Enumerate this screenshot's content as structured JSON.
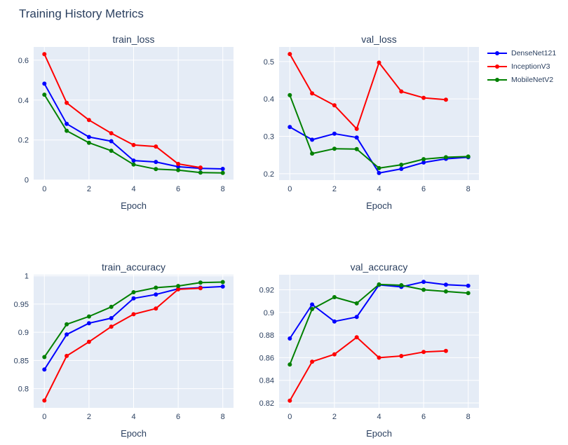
{
  "page_title": "Training History Metrics",
  "colors": {
    "text": "#2a3f5f",
    "plot_bg": "#e5ecf6",
    "grid": "#ffffff",
    "paper": "#ffffff"
  },
  "legend": {
    "position": "outside-top-right",
    "items": [
      {
        "label": "DenseNet121",
        "color": "#0000ff"
      },
      {
        "label": "InceptionV3",
        "color": "#ff0000"
      },
      {
        "label": "MobileNetV2",
        "color": "#008000"
      }
    ]
  },
  "chart_data": [
    {
      "type": "line",
      "title": "train_loss",
      "xlabel": "Epoch",
      "x": [
        0,
        1,
        2,
        3,
        4,
        5,
        6,
        7,
        8
      ],
      "xlim": [
        -0.48,
        8.48
      ],
      "ylim": [
        -0.001,
        0.666
      ],
      "xticks": [
        0,
        2,
        4,
        6,
        8
      ],
      "xtick_labels": [
        "0",
        "2",
        "4",
        "6",
        "8"
      ],
      "yticks": [
        0,
        0.2,
        0.4,
        0.6
      ],
      "ytick_labels": [
        "0",
        "0.2",
        "0.4",
        "0.6"
      ],
      "grid": true,
      "series": [
        {
          "name": "DenseNet121",
          "color": "#0000ff",
          "values": [
            0.482,
            0.281,
            0.215,
            0.194,
            0.097,
            0.09,
            0.066,
            0.058,
            0.055
          ]
        },
        {
          "name": "InceptionV3",
          "color": "#ff0000",
          "values": [
            0.63,
            0.386,
            0.3,
            0.234,
            0.175,
            0.167,
            0.08,
            0.062
          ]
        },
        {
          "name": "MobileNetV2",
          "color": "#008000",
          "values": [
            0.427,
            0.246,
            0.186,
            0.146,
            0.077,
            0.054,
            0.049,
            0.037,
            0.035
          ]
        }
      ]
    },
    {
      "type": "line",
      "title": "val_loss",
      "xlabel": "Epoch",
      "x": [
        0,
        1,
        2,
        3,
        4,
        5,
        6,
        7,
        8
      ],
      "xlim": [
        -0.48,
        8.48
      ],
      "ylim": [
        0.183,
        0.539
      ],
      "xticks": [
        0,
        2,
        4,
        6,
        8
      ],
      "xtick_labels": [
        "0",
        "2",
        "4",
        "6",
        "8"
      ],
      "yticks": [
        0.2,
        0.3,
        0.4,
        0.5
      ],
      "ytick_labels": [
        "0.2",
        "0.3",
        "0.4",
        "0.5"
      ],
      "grid": true,
      "series": [
        {
          "name": "DenseNet121",
          "color": "#0000ff",
          "values": [
            0.325,
            0.291,
            0.307,
            0.297,
            0.202,
            0.213,
            0.23,
            0.24,
            0.244
          ]
        },
        {
          "name": "InceptionV3",
          "color": "#ff0000",
          "values": [
            0.52,
            0.415,
            0.383,
            0.32,
            0.497,
            0.42,
            0.403,
            0.398
          ]
        },
        {
          "name": "MobileNetV2",
          "color": "#008000",
          "values": [
            0.41,
            0.254,
            0.267,
            0.266,
            0.215,
            0.224,
            0.239,
            0.244,
            0.246
          ]
        }
      ]
    },
    {
      "type": "line",
      "title": "train_accuracy",
      "xlabel": "Epoch",
      "x": [
        0,
        1,
        2,
        3,
        4,
        5,
        6,
        7,
        8
      ],
      "xlim": [
        -0.48,
        8.48
      ],
      "ylim": [
        0.766,
        1.002
      ],
      "xticks": [
        0,
        2,
        4,
        6,
        8
      ],
      "xtick_labels": [
        "0",
        "2",
        "4",
        "6",
        "8"
      ],
      "yticks": [
        0.8,
        0.85,
        0.9,
        0.95,
        1
      ],
      "ytick_labels": [
        "0.8",
        "0.85",
        "0.9",
        "0.95",
        "1"
      ],
      "grid": true,
      "series": [
        {
          "name": "DenseNet121",
          "color": "#0000ff",
          "values": [
            0.834,
            0.896,
            0.916,
            0.925,
            0.96,
            0.967,
            0.977,
            0.979,
            0.981
          ]
        },
        {
          "name": "InceptionV3",
          "color": "#ff0000",
          "values": [
            0.779,
            0.858,
            0.883,
            0.91,
            0.932,
            0.942,
            0.976,
            0.978
          ]
        },
        {
          "name": "MobileNetV2",
          "color": "#008000",
          "values": [
            0.856,
            0.914,
            0.928,
            0.945,
            0.971,
            0.979,
            0.982,
            0.988,
            0.989
          ]
        }
      ]
    },
    {
      "type": "line",
      "title": "val_accuracy",
      "xlabel": "Epoch",
      "x": [
        0,
        1,
        2,
        3,
        4,
        5,
        6,
        7,
        8
      ],
      "xlim": [
        -0.48,
        8.48
      ],
      "ylim": [
        0.8157,
        0.9333
      ],
      "xticks": [
        0,
        2,
        4,
        6,
        8
      ],
      "xtick_labels": [
        "0",
        "2",
        "4",
        "6",
        "8"
      ],
      "yticks": [
        0.82,
        0.84,
        0.86,
        0.88,
        0.9,
        0.92
      ],
      "ytick_labels": [
        "0.82",
        "0.84",
        "0.86",
        "0.88",
        "0.9",
        "0.92"
      ],
      "grid": true,
      "series": [
        {
          "name": "DenseNet121",
          "color": "#0000ff",
          "values": [
            0.877,
            0.907,
            0.892,
            0.896,
            0.9243,
            0.9225,
            0.927,
            0.9245,
            0.9235
          ]
        },
        {
          "name": "InceptionV3",
          "color": "#ff0000",
          "values": [
            0.822,
            0.8565,
            0.863,
            0.878,
            0.86,
            0.8615,
            0.865,
            0.866
          ]
        },
        {
          "name": "MobileNetV2",
          "color": "#008000",
          "values": [
            0.854,
            0.903,
            0.9135,
            0.908,
            0.9247,
            0.924,
            0.92,
            0.9185,
            0.917
          ]
        }
      ]
    }
  ]
}
